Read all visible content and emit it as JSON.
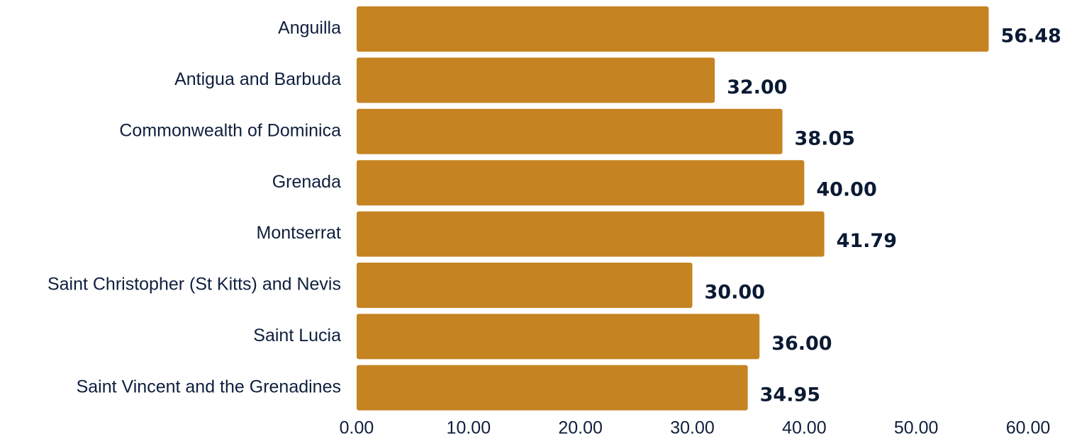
{
  "chart_data": {
    "type": "bar",
    "orientation": "horizontal",
    "categories": [
      "Anguilla",
      "Antigua and Barbuda",
      "Commonwealth of Dominica",
      "Grenada",
      "Montserrat",
      "Saint Christopher (St Kitts) and Nevis",
      "Saint Lucia",
      "Saint Vincent and the Grenadines"
    ],
    "values": [
      56.48,
      32.0,
      38.05,
      40.0,
      41.79,
      30.0,
      36.0,
      34.95
    ],
    "value_labels": [
      "56.48",
      "32.00",
      "38.05",
      "40.00",
      "41.79",
      "30.00",
      "36.00",
      "34.95"
    ],
    "xlim": [
      0,
      60
    ],
    "x_ticks": [
      0,
      10,
      20,
      30,
      40,
      50,
      60
    ],
    "x_tick_labels": [
      "0.00",
      "10.00",
      "20.00",
      "30.00",
      "40.00",
      "50.00",
      "60.00"
    ],
    "title": "",
    "xlabel": "",
    "ylabel": "",
    "grid": false,
    "legend": "none",
    "bar_color": "#c58322",
    "label_color": "#0b1a33"
  }
}
